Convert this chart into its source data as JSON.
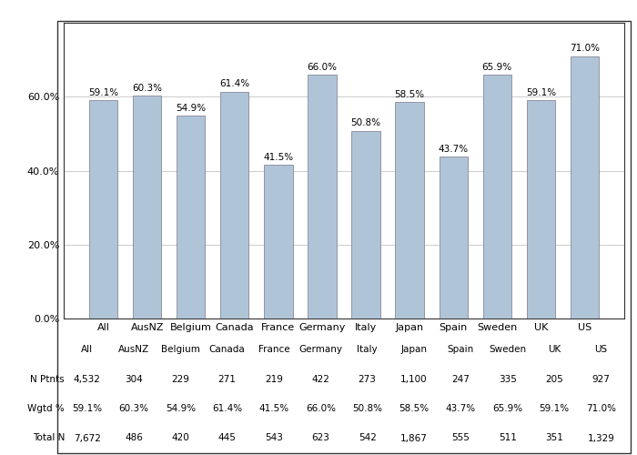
{
  "categories": [
    "All",
    "AusNZ",
    "Belgium",
    "Canada",
    "France",
    "Germany",
    "Italy",
    "Japan",
    "Spain",
    "Sweden",
    "UK",
    "US"
  ],
  "values": [
    59.1,
    60.3,
    54.9,
    61.4,
    41.5,
    66.0,
    50.8,
    58.5,
    43.7,
    65.9,
    59.1,
    71.0
  ],
  "bar_color": "#b0c4d8",
  "bar_edge_color": "#888899",
  "yticks": [
    0.0,
    20.0,
    40.0,
    60.0
  ],
  "ylim": [
    0,
    80
  ],
  "n_ptnts_str": [
    "4,532",
    "304",
    "229",
    "271",
    "219",
    "422",
    "273",
    "1,100",
    "247",
    "335",
    "205",
    "927"
  ],
  "wgtd_pct": [
    "59.1%",
    "60.3%",
    "54.9%",
    "61.4%",
    "41.5%",
    "66.0%",
    "50.8%",
    "58.5%",
    "43.7%",
    "65.9%",
    "59.1%",
    "71.0%"
  ],
  "total_n_str": [
    "7,672",
    "486",
    "420",
    "445",
    "543",
    "623",
    "542",
    "1,867",
    "555",
    "511",
    "351",
    "1,329"
  ],
  "label_row0": "N Ptnts",
  "label_row1": "Wgtd %",
  "label_row2": "Total N",
  "background_color": "#ffffff",
  "grid_color": "#cccccc",
  "border_color": "#333333",
  "font_size_axis": 8,
  "font_size_bar_labels": 7.5,
  "font_size_table": 7.5
}
